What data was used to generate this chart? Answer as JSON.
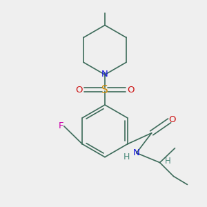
{
  "bg_color": "#efefef",
  "bond_color": "#3d6b5a",
  "bond_width": 1.2,
  "atoms": {
    "F": {
      "color": "#cc00aa",
      "fontsize": 9.5
    },
    "N": {
      "color": "#1111dd",
      "fontsize": 9.5
    },
    "O": {
      "color": "#cc1111",
      "fontsize": 9.5
    },
    "S": {
      "color": "#cc8800",
      "fontsize": 11
    },
    "H": {
      "color": "#4a8a7a",
      "fontsize": 9
    },
    "CH": {
      "color": "#4a8a7a",
      "fontsize": 9
    }
  }
}
